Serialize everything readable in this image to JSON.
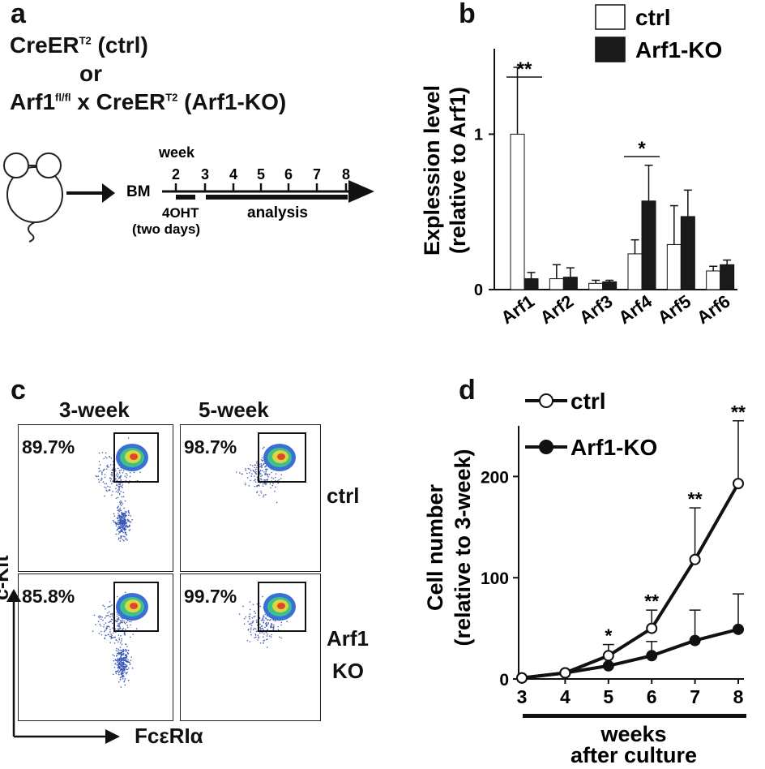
{
  "panels": {
    "a": "a",
    "b": "b",
    "c": "c",
    "d": "d"
  },
  "panel_a": {
    "line1_main": "CreER",
    "line1_sup": "T2",
    "line1_tail": " (ctrl)",
    "line2": "or",
    "line3_main": "Arf1",
    "line3_sup1": "fl/fl",
    "line3_mid": " x CreER",
    "line3_sup2": "T2",
    "line3_tail": " (Arf1-KO)",
    "timeline": {
      "week_label": "week",
      "ticks": [
        "2",
        "3",
        "4",
        "5",
        "6",
        "7",
        "8"
      ],
      "bm_label": "BM",
      "ohti_label": "4OHT",
      "ohti_sub": "(two days)",
      "analysis_label": "analysis"
    }
  },
  "panel_c": {
    "col_headers": [
      "3-week",
      "5-week"
    ],
    "row_labels": [
      "ctrl",
      "Arf1",
      "KO"
    ],
    "percentages": [
      "89.7%",
      "98.7%",
      "85.8%",
      "99.7%"
    ],
    "y_axis": "c-Kit",
    "x_axis": "FcεRIα"
  },
  "chart_data": [
    {
      "type": "bar",
      "categories": [
        "Arf1",
        "Arf2",
        "Arf3",
        "Arf4",
        "Arf5",
        "Arf6"
      ],
      "series": [
        {
          "name": "ctrl",
          "values": [
            1.0,
            0.07,
            0.04,
            0.23,
            0.29,
            0.12
          ],
          "errors": [
            0.43,
            0.09,
            0.02,
            0.09,
            0.25,
            0.03
          ]
        },
        {
          "name": "Arf1-KO",
          "values": [
            0.07,
            0.08,
            0.05,
            0.57,
            0.47,
            0.16
          ],
          "errors": [
            0.04,
            0.06,
            0.01,
            0.23,
            0.17,
            0.03
          ]
        }
      ],
      "ylabel": "Explession level",
      "ylabel2": "(relative to Arf1)",
      "yticks": [
        0,
        1
      ],
      "ylim": [
        0,
        1.55
      ],
      "significance": [
        {
          "category": "Arf1",
          "label": "**"
        },
        {
          "category": "Arf4",
          "label": "*"
        }
      ],
      "legend": "top-right"
    },
    {
      "type": "line",
      "x": [
        3,
        4,
        5,
        6,
        7,
        8
      ],
      "series": [
        {
          "name": "ctrl",
          "values": [
            1,
            6,
            23,
            50,
            118,
            193
          ],
          "errors": [
            0,
            0,
            11,
            18,
            51,
            62
          ]
        },
        {
          "name": "Arf1-KO",
          "values": [
            1,
            6,
            13,
            23,
            38,
            49
          ],
          "errors": [
            0,
            0,
            0,
            14,
            30,
            35
          ]
        }
      ],
      "significance": [
        {
          "x": 5,
          "label": "*"
        },
        {
          "x": 6,
          "label": "**"
        },
        {
          "x": 7,
          "label": "**"
        },
        {
          "x": 8,
          "label": "**"
        }
      ],
      "ylabel": "Cell number",
      "ylabel2": "(relative to 3-week)",
      "xlabel": "weeks",
      "xlabel2": "after culture",
      "yticks": [
        0,
        100,
        200
      ],
      "ylim": [
        0,
        250
      ],
      "legend": "top-left"
    }
  ]
}
